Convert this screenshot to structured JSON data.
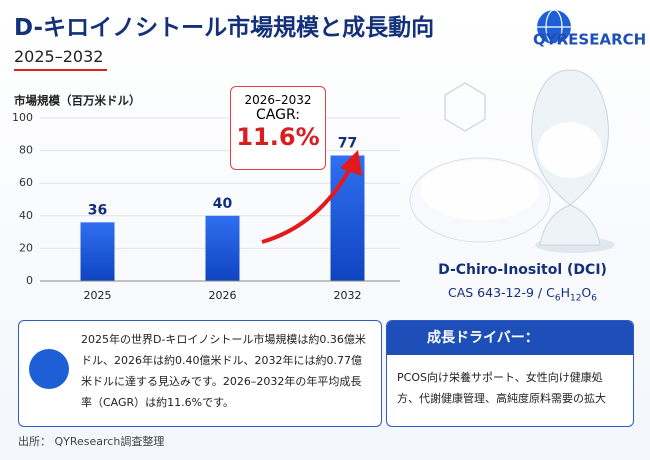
{
  "header": {
    "title": "D-キロイノシトール市場規模と成長動向",
    "subtitle": "2025–2032"
  },
  "logo": "QYRESEARCH",
  "chart_data": {
    "type": "bar",
    "y_label": "市場規模（百万米ドル）",
    "categories": [
      "2025",
      "2026",
      "2032"
    ],
    "values": [
      36,
      40,
      77
    ],
    "color": "#1a5ad8",
    "ylim": [
      0,
      100
    ],
    "yticks": [
      0,
      20,
      40,
      60,
      80,
      100
    ],
    "grid": true
  },
  "cagr": {
    "period": "2026–2032",
    "label": "CAGR:",
    "value": "11.6%"
  },
  "product": {
    "name": "D-Chiro-Inositol (DCI)",
    "cas": "CAS 643-12-9 / ",
    "formula": [
      "C",
      "6",
      "H",
      "12",
      "O",
      "6"
    ]
  },
  "summary": "2025年の世界D-キロイノシトール市場規模は約0.36億米ドル、2026年は約0.40億米ドル、2032年には約0.77億米ドルに達する見込みです。2026–2032年の年平均成長率（CAGR）は約11.6%です。",
  "drivers": {
    "title": "成長ドライバー：",
    "text": "PCOS向け栄養サポート、女性向け健康処方、代謝健康管理、高純度原料需要の拡大"
  },
  "source": "出所： QYResearch調査整理"
}
